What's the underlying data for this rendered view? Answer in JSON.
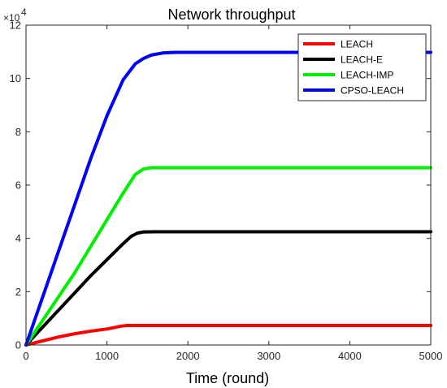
{
  "chart_data": {
    "type": "line",
    "title": "Network throughput",
    "xlabel": "Time (round)",
    "ylabel": "",
    "xlim": [
      0,
      5000
    ],
    "ylim": [
      0,
      12
    ],
    "y_exponent_label": "×10",
    "y_exponent_power": "4",
    "x_ticks": [
      "0",
      "1000",
      "2000",
      "3000",
      "4000",
      "5000"
    ],
    "y_ticks": [
      "0",
      "2",
      "4",
      "6",
      "8",
      "10",
      "12"
    ],
    "x_tick_values": [
      0,
      1000,
      2000,
      3000,
      4000,
      5000
    ],
    "y_tick_values": [
      0,
      2,
      4,
      6,
      8,
      10,
      12
    ],
    "legend_position": "top-right",
    "grid": false,
    "series": [
      {
        "name": "LEACH",
        "color": "#ff0000",
        "x": [
          0,
          200,
          400,
          600,
          800,
          1000,
          1100,
          1180,
          1250,
          1400,
          2000,
          3000,
          4000,
          5000
        ],
        "y": [
          0,
          0.15,
          0.3,
          0.42,
          0.52,
          0.6,
          0.66,
          0.71,
          0.73,
          0.73,
          0.73,
          0.73,
          0.73,
          0.73
        ]
      },
      {
        "name": "LEACH-E",
        "color": "#000000",
        "x": [
          0,
          200,
          400,
          600,
          800,
          1000,
          1200,
          1300,
          1380,
          1450,
          1600,
          2000,
          3000,
          4000,
          5000
        ],
        "y": [
          0,
          0.65,
          1.3,
          1.95,
          2.6,
          3.2,
          3.8,
          4.08,
          4.2,
          4.24,
          4.25,
          4.25,
          4.25,
          4.25,
          4.25
        ]
      },
      {
        "name": "LEACH-IMP",
        "color": "#00ee00",
        "x": [
          0,
          200,
          400,
          600,
          800,
          1000,
          1200,
          1350,
          1450,
          1550,
          1700,
          2000,
          3000,
          4000,
          5000
        ],
        "y": [
          0,
          0.9,
          1.8,
          2.7,
          3.7,
          4.7,
          5.7,
          6.4,
          6.6,
          6.65,
          6.65,
          6.65,
          6.65,
          6.65,
          6.65
        ]
      },
      {
        "name": "CPSO-LEACH",
        "color": "#0000ff",
        "x": [
          0,
          200,
          400,
          600,
          800,
          1000,
          1200,
          1350,
          1450,
          1550,
          1700,
          1850,
          2000,
          3000,
          4000,
          5000
        ],
        "y": [
          0,
          1.75,
          3.5,
          5.25,
          7.0,
          8.6,
          9.95,
          10.55,
          10.75,
          10.88,
          10.96,
          10.98,
          10.98,
          10.98,
          10.98,
          10.98
        ]
      }
    ]
  }
}
